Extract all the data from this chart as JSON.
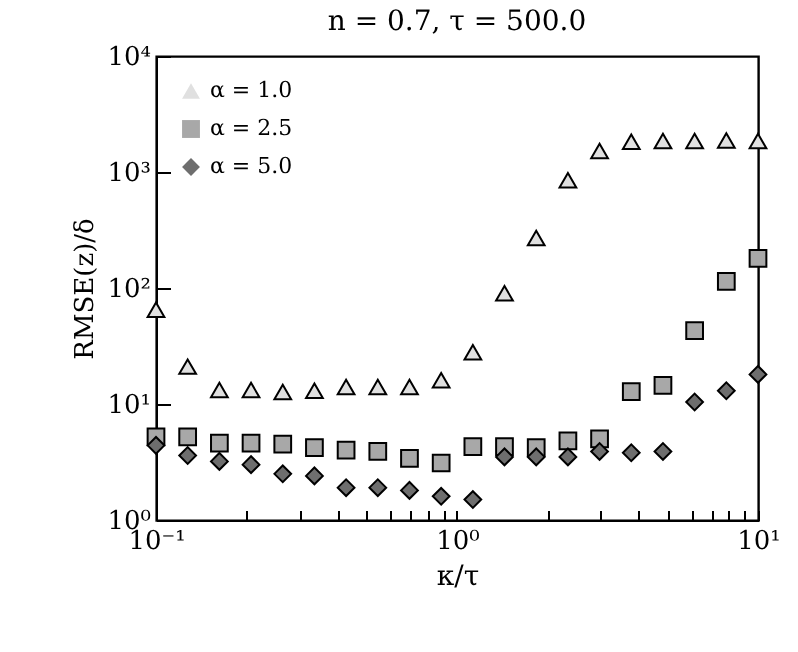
{
  "chart_data": {
    "type": "scatter",
    "title": "n = 0.7, τ = 500.0",
    "xlabel": "κ/τ",
    "ylabel": "RMSE(z)/δ",
    "log": "xy",
    "legend": "top left",
    "x": [
      0.1,
      0.1274,
      0.1624,
      0.2069,
      0.2637,
      0.336,
      0.4281,
      0.5456,
      0.6952,
      0.8859,
      1.129,
      1.438,
      1.833,
      2.336,
      2.976,
      3.793,
      4.833,
      6.158,
      7.848,
      10
    ],
    "series": [
      {
        "name": "α = 1.0",
        "color": "#e0e0e0",
        "marker": "triangle",
        "values": [
          65,
          21,
          13.2,
          13.2,
          12.7,
          13,
          14,
          14,
          14,
          16,
          28,
          90,
          270,
          850,
          1520,
          1820,
          1850,
          1850,
          1870,
          1850
        ]
      },
      {
        "name": "α = 2.5",
        "color": "#a8a8a8",
        "marker": "square",
        "values": [
          5.2,
          5.2,
          4.6,
          4.6,
          4.5,
          4.2,
          4.0,
          3.9,
          3.4,
          3.1,
          4.3,
          4.3,
          4.2,
          4.8,
          5.0,
          12.8,
          14.5,
          43,
          114,
          180
        ]
      },
      {
        "name": "α = 5.0",
        "color": "#6e6e6e",
        "marker": "diamond",
        "values": [
          4.4,
          3.6,
          3.2,
          3.0,
          2.5,
          2.4,
          1.9,
          1.9,
          1.8,
          1.6,
          1.5,
          3.5,
          3.5,
          3.5,
          3.9,
          3.8,
          3.9,
          10.4,
          13,
          18
        ]
      }
    ],
    "xlim": [
      0.1,
      10
    ],
    "ylim": [
      1,
      10000
    ],
    "xticks": [
      {
        "value": 0.1,
        "label": "10⁻¹"
      },
      {
        "value": 0.2,
        "label": null
      },
      {
        "value": 0.3,
        "label": null
      },
      {
        "value": 0.4,
        "label": null
      },
      {
        "value": 0.5,
        "label": null
      },
      {
        "value": 0.6,
        "label": null
      },
      {
        "value": 0.7,
        "label": null
      },
      {
        "value": 0.8,
        "label": null
      },
      {
        "value": 0.9,
        "label": null
      },
      {
        "value": 1,
        "label": "10⁰"
      },
      {
        "value": 2,
        "label": null
      },
      {
        "value": 3,
        "label": null
      },
      {
        "value": 4,
        "label": null
      },
      {
        "value": 5,
        "label": null
      },
      {
        "value": 6,
        "label": null
      },
      {
        "value": 7,
        "label": null
      },
      {
        "value": 8,
        "label": null
      },
      {
        "value": 9,
        "label": null
      },
      {
        "value": 10,
        "label": "10¹"
      }
    ],
    "yticks": [
      {
        "value": 1,
        "label": "10⁰"
      },
      {
        "value": 10,
        "label": "10¹"
      },
      {
        "value": 100,
        "label": "10²"
      },
      {
        "value": 1000,
        "label": "10³"
      },
      {
        "value": 10000,
        "label": "10⁴"
      }
    ]
  }
}
